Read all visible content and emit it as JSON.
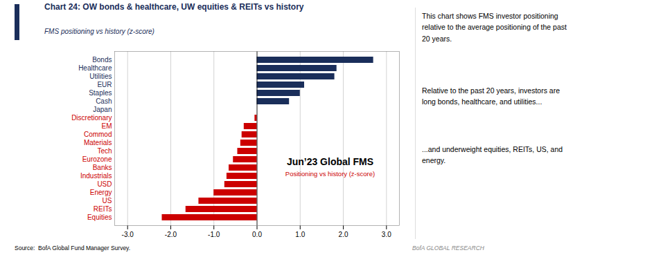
{
  "chart_data": {
    "type": "bar",
    "orientation": "horizontal",
    "title": "Chart 24: OW bonds & healthcare, UW equities & REITs vs history",
    "subtitle": "FMS positioning vs history (z-score)",
    "categories": [
      "Equities",
      "REITs",
      "US",
      "Energy",
      "USD",
      "Industrials",
      "Banks",
      "Eurozone",
      "Tech",
      "Materials",
      "Commod",
      "EM",
      "Discretionary",
      "Japan",
      "Cash",
      "Staples",
      "EUR",
      "Utilities",
      "Healthcare",
      "Bonds"
    ],
    "values": [
      -2.2,
      -1.65,
      -1.35,
      -1.0,
      -0.75,
      -0.7,
      -0.65,
      -0.55,
      -0.45,
      -0.38,
      -0.35,
      -0.3,
      -0.05,
      0.0,
      0.75,
      1.0,
      1.1,
      1.8,
      1.85,
      2.7
    ],
    "colors": [
      "#cc0000",
      "#cc0000",
      "#cc0000",
      "#cc0000",
      "#cc0000",
      "#cc0000",
      "#cc0000",
      "#cc0000",
      "#cc0000",
      "#cc0000",
      "#cc0000",
      "#cc0000",
      "#cc0000",
      "#1a2e5a",
      "#1a2e5a",
      "#1a2e5a",
      "#1a2e5a",
      "#1a2e5a",
      "#1a2e5a",
      "#1a2e5a"
    ],
    "xlim": [
      -3.3,
      3.3
    ],
    "xticks": [
      {
        "value": -3.0,
        "label": "-3.0"
      },
      {
        "value": -2.0,
        "label": "-2.0"
      },
      {
        "value": -1.0,
        "label": "-1.0"
      },
      {
        "value": 0.0,
        "label": "0.0"
      },
      {
        "value": 1.0,
        "label": "1.0"
      },
      {
        "value": 2.0,
        "label": "2.0"
      },
      {
        "value": 3.0,
        "label": "3.0"
      }
    ],
    "grid": true,
    "annotations": [
      "Jun’23 Global FMS",
      "Positioning vs history (z-score)",
      "This chart shows FMS investor positioning\nrelative to the average positioning of the past\n20 years.",
      "Relative to the past 20 years, investors are\nlong bonds, healthcare, and utilities...",
      "...and underweight equities, REITs, US, and\nenergy.",
      "Source:  BofA Global Fund Manager Survey.",
      "BofA GLOBAL RESEARCH"
    ]
  }
}
